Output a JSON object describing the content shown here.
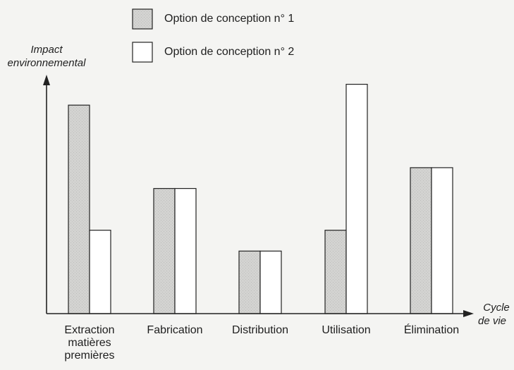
{
  "chart_data": {
    "type": "bar",
    "title": "",
    "ylabel": "Impact environnemental",
    "ylabel_lines": [
      "Impact",
      "environnemental"
    ],
    "xlabel": "Cycle de vie",
    "xlabel_lines": [
      "Cycle",
      "de vie"
    ],
    "categories": [
      "Extraction matières premières",
      "Fabrication",
      "Distribution",
      "Utilisation",
      "Élimination"
    ],
    "category_lines": [
      [
        "Extraction",
        "matières",
        "premières"
      ],
      [
        "Fabrication"
      ],
      [
        "Distribution"
      ],
      [
        "Utilisation"
      ],
      [
        "Élimination"
      ]
    ],
    "series": [
      {
        "name": "Option de conception n° 1",
        "values": [
          100,
          60,
          30,
          40,
          70
        ],
        "fill": "#d0d0ce"
      },
      {
        "name": "Option de conception n° 2",
        "values": [
          40,
          60,
          30,
          110,
          70
        ],
        "fill": "#ffffff"
      }
    ],
    "ylim": [
      0,
      120
    ],
    "y_ticks_shown": false,
    "grid": false,
    "legend_position": "top"
  }
}
